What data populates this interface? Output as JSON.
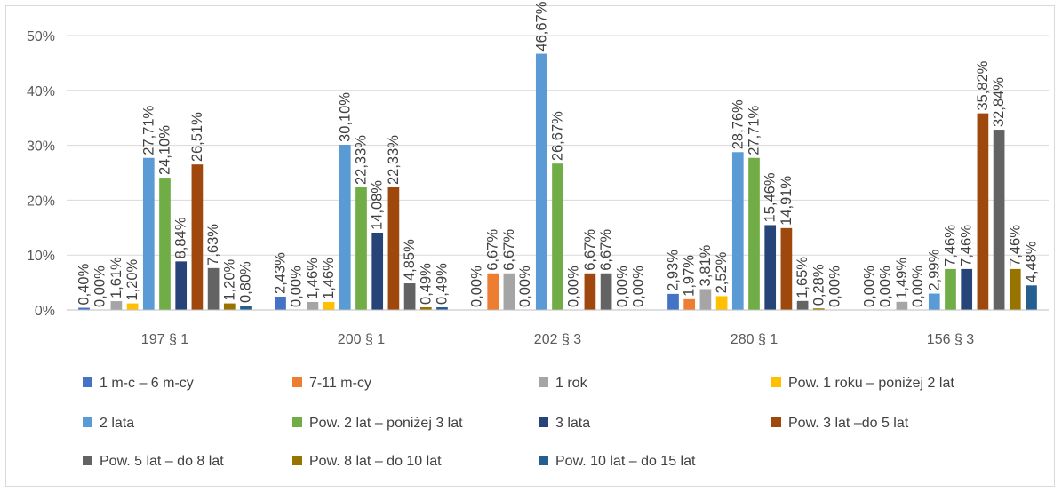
{
  "chart_data": {
    "type": "bar",
    "categories": [
      "197 § 1",
      "200 § 1",
      "202 § 3",
      "280 § 1",
      "156 § 3"
    ],
    "ylim": [
      0,
      50
    ],
    "yticks": [
      "0%",
      "10%",
      "20%",
      "30%",
      "40%",
      "50%"
    ],
    "ytick_values": [
      0,
      10,
      20,
      30,
      40,
      50
    ],
    "grid": true,
    "legend_position": "bottom",
    "series": [
      {
        "name": "1 m-c – 6 m-cy",
        "color": "#4472c4",
        "values": [
          0.4,
          2.43,
          0.0,
          2.93,
          0.0
        ],
        "labels": [
          "0,40%",
          "2,43%",
          "0,00%",
          "2,93%",
          "0,00%"
        ]
      },
      {
        "name": "7-11 m-cy",
        "color": "#ed7d31",
        "values": [
          0.0,
          0.0,
          6.67,
          1.97,
          0.0
        ],
        "labels": [
          "0,00%",
          "0,00%",
          "6,67%",
          "1,97%",
          "0,00%"
        ]
      },
      {
        "name": "1 rok",
        "color": "#a5a5a5",
        "values": [
          1.61,
          1.46,
          6.67,
          3.81,
          1.49
        ],
        "labels": [
          "1,61%",
          "1,46%",
          "6,67%",
          "3,81%",
          "1,49%"
        ]
      },
      {
        "name": "Pow. 1 roku – poniżej 2 lat",
        "color": "#ffc000",
        "values": [
          1.2,
          1.46,
          0.0,
          2.52,
          0.0
        ],
        "labels": [
          "1,20%",
          "1,46%",
          "0,00%",
          "2,52%",
          "0,00%"
        ]
      },
      {
        "name": "2 lata",
        "color": "#5b9bd5",
        "values": [
          27.71,
          30.1,
          46.67,
          28.76,
          2.99
        ],
        "labels": [
          "27,71%",
          "30,10%",
          "46,67%",
          "28,76%",
          "2,99%"
        ]
      },
      {
        "name": "Pow. 2 lat – poniżej 3 lat",
        "color": "#70ad47",
        "values": [
          24.1,
          22.33,
          26.67,
          27.71,
          7.46
        ],
        "labels": [
          "24,10%",
          "22,33%",
          "26,67%",
          "27,71%",
          "7,46%"
        ]
      },
      {
        "name": "3 lata",
        "color": "#264478",
        "values": [
          8.84,
          14.08,
          0.0,
          15.46,
          7.46
        ],
        "labels": [
          "8,84%",
          "14,08%",
          "0,00%",
          "15,46%",
          "7,46%"
        ]
      },
      {
        "name": "Pow. 3 lat –do 5 lat",
        "color": "#9e480e",
        "values": [
          26.51,
          22.33,
          6.67,
          14.91,
          35.82
        ],
        "labels": [
          "26,51%",
          "22,33%",
          "6,67%",
          "14,91%",
          "35,82%"
        ]
      },
      {
        "name": "Pow. 5 lat – do 8 lat",
        "color": "#636363",
        "values": [
          7.63,
          4.85,
          6.67,
          1.65,
          32.84
        ],
        "labels": [
          "7,63%",
          "4,85%",
          "6,67%",
          "1,65%",
          "32,84%"
        ]
      },
      {
        "name": "Pow. 8 lat – do 10 lat",
        "color": "#997300",
        "values": [
          1.2,
          0.49,
          0.0,
          0.28,
          7.46
        ],
        "labels": [
          "1,20%",
          "0,49%",
          "0,00%",
          "0,28%",
          "7,46%"
        ]
      },
      {
        "name": "Pow. 10 lat – do 15 lat",
        "color": "#255e91",
        "values": [
          0.8,
          0.49,
          0.0,
          0.0,
          4.48
        ],
        "labels": [
          "0,80%",
          "0,49%",
          "0,00%",
          "0,00%",
          "4,48%"
        ]
      }
    ]
  }
}
